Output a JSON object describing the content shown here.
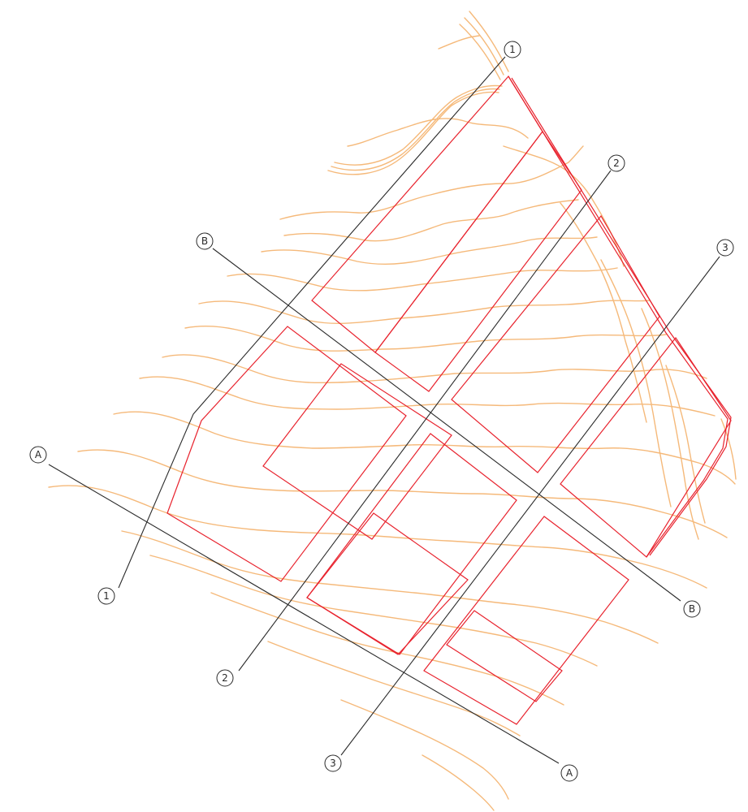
{
  "colors": {
    "contour": "#f5b97a",
    "plot": "#e8232e",
    "grid": "#2a2a2a",
    "background": "#ffffff"
  },
  "grid_labels": {
    "line_1": "1",
    "line_2": "2",
    "line_3": "3",
    "line_a": "A",
    "line_b": "B"
  }
}
